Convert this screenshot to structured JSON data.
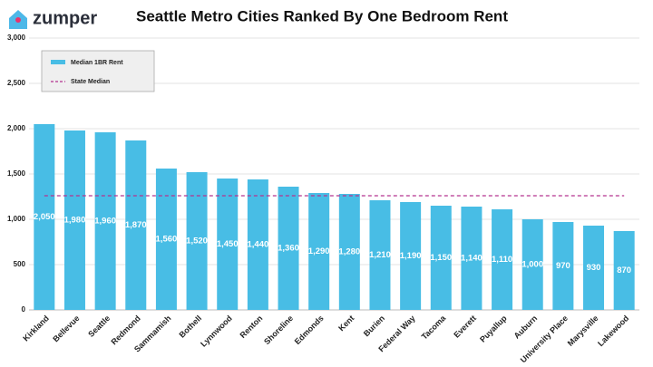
{
  "chart_data": {
    "type": "bar",
    "logo": "zumper",
    "title": "Seattle Metro Cities Ranked By One Bedroom Rent",
    "categories": [
      "Kirkland",
      "Bellevue",
      "Seattle",
      "Redmond",
      "Sammamish",
      "Bothell",
      "Lynnwood",
      "Renton",
      "Shoreline",
      "Edmonds",
      "Kent",
      "Burien",
      "Federal Way",
      "Tacoma",
      "Everett",
      "Puyallup",
      "Auburn",
      "University Place",
      "Marysville",
      "Lakewood"
    ],
    "series": [
      {
        "name": "Median 1BR Rent",
        "color": "#48bde5",
        "values": [
          2050,
          1980,
          1960,
          1870,
          1560,
          1520,
          1450,
          1440,
          1360,
          1290,
          1280,
          1210,
          1190,
          1150,
          1140,
          1110,
          1000,
          970,
          930,
          870
        ],
        "value_labels": [
          "2,050",
          "1,980",
          "1,960",
          "1,870",
          "1,560",
          "1,520",
          "1,450",
          "1,440",
          "1,360",
          "1,290",
          "1,280",
          "1,210",
          "1,190",
          "1,150",
          "1,140",
          "1,110",
          "1,000",
          "970",
          "930",
          "870"
        ]
      }
    ],
    "reference_line": {
      "name": "State Median",
      "value": 1260,
      "color": "#b5338f"
    },
    "ylim": [
      0,
      3000
    ],
    "yticks": [
      0,
      500,
      {
        "value": 1000,
        "label": "1,000"
      },
      {
        "value": 1500,
        "label": "1,500"
      },
      {
        "value": 2000,
        "label": "2,000"
      },
      {
        "value": 2500,
        "label": "2,500"
      },
      {
        "value": 3000,
        "label": "3,000"
      }
    ],
    "grid": true,
    "legend": "top-left"
  }
}
